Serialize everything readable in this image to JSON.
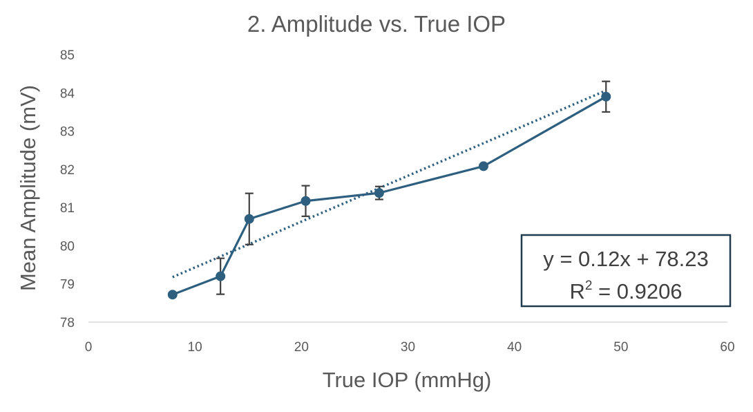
{
  "chart_data": {
    "type": "line",
    "title": "2. Amplitude vs. True IOP",
    "xlabel": "True IOP (mmHg)",
    "ylabel": "Mean Amplitude (mV)",
    "xlim": [
      0,
      60
    ],
    "ylim": [
      78,
      85
    ],
    "x_ticks": [
      "0",
      "10",
      "20",
      "30",
      "40",
      "50",
      "60"
    ],
    "y_ticks": [
      "78",
      "79",
      "80",
      "81",
      "82",
      "83",
      "84",
      "85"
    ],
    "grid": false,
    "legend": "none",
    "series": [
      {
        "x": [
          7.9,
          12.4,
          15.1,
          20.4,
          27.3,
          37.1,
          48.6
        ],
        "y": [
          78.72,
          79.2,
          80.7,
          81.17,
          81.38,
          82.08,
          83.9
        ],
        "error": [
          0.05,
          0.47,
          0.67,
          0.4,
          0.17,
          0.03,
          0.4
        ],
        "color": "#2E5F7F"
      }
    ],
    "trendline": {
      "type": "linear",
      "style": "dotted",
      "color": "#2E5F7F",
      "slope": 0.12,
      "intercept": 78.23,
      "x_range": [
        7.9,
        48.6
      ]
    },
    "annotation": {
      "equation": "y = 0.12x + 78.23",
      "r2_prefix": "R",
      "r2_sup": "2",
      "r2_suffix": " = 0.9206"
    }
  }
}
